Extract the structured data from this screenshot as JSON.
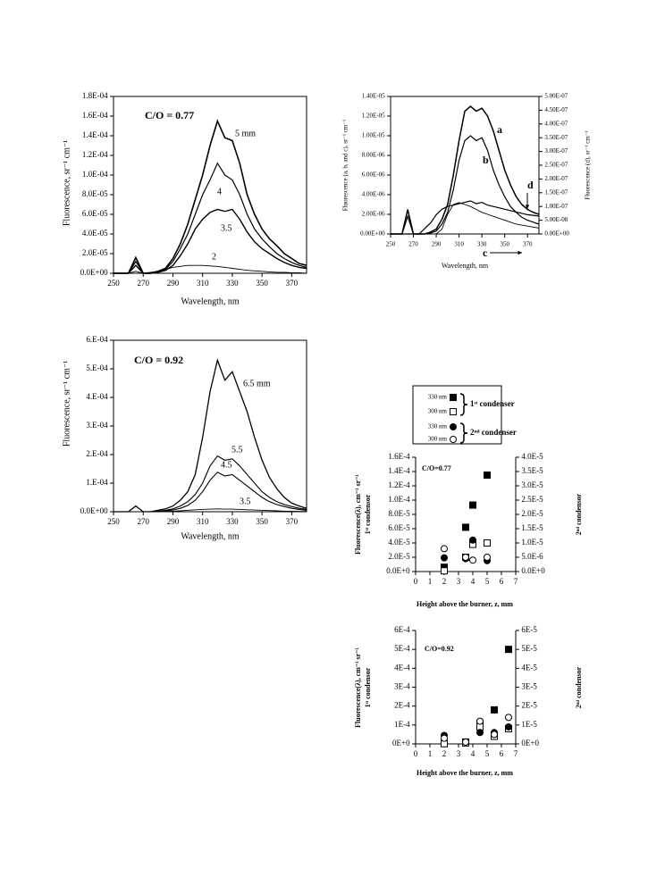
{
  "chart_data": [
    {
      "type": "line",
      "annotation": "C/O = 0.77",
      "xlabel": "Wavelength, nm",
      "ylabel": "Fluorescence, sr⁻¹ cm⁻¹",
      "x": [
        250,
        255,
        260,
        265,
        270,
        275,
        280,
        285,
        290,
        295,
        300,
        305,
        310,
        315,
        320,
        325,
        330,
        335,
        340,
        345,
        350,
        355,
        360,
        365,
        370,
        375,
        380
      ],
      "xlim": [
        250,
        380
      ],
      "xticks": [
        250,
        270,
        290,
        310,
        330,
        350,
        370
      ],
      "ylim": [
        0,
        0.00018
      ],
      "yticks": [
        {
          "value": 0,
          "label": "0.0E+00"
        },
        {
          "value": 2e-05,
          "label": "2.0E-05"
        },
        {
          "value": 4e-05,
          "label": "4.0E-05"
        },
        {
          "value": 6e-05,
          "label": "6.0E-05"
        },
        {
          "value": 8e-05,
          "label": "8.0E-05"
        },
        {
          "value": 0.0001,
          "label": "1.0E-04"
        },
        {
          "value": 0.00012,
          "label": "1.2E-04"
        },
        {
          "value": 0.00014,
          "label": "1.4E-04"
        },
        {
          "value": 0.00016,
          "label": "1.6E-04"
        },
        {
          "value": 0.00018,
          "label": "1.8E-04"
        }
      ],
      "series": [
        {
          "name": "5 mm",
          "color": "#000000",
          "width": 1.6,
          "values": [
            0,
            0,
            0,
            1.6e-05,
            0,
            0,
            2e-06,
            5e-06,
            1.5e-05,
            3e-05,
            5e-05,
            7.5e-05,
            0.0001,
            0.00013,
            0.000155,
            0.000138,
            0.000135,
            0.000112,
            8e-05,
            6e-05,
            4.5e-05,
            3.5e-05,
            2.8e-05,
            2e-05,
            1.5e-05,
            1e-05,
            8e-06
          ]
        },
        {
          "name": "4",
          "color": "#000000",
          "width": 1.2,
          "values": [
            0,
            0,
            0,
            1.2e-05,
            0,
            0,
            2e-06,
            4e-06,
            1.2e-05,
            2.5e-05,
            4e-05,
            6e-05,
            8e-05,
            9.5e-05,
            0.000112,
            0.0001,
            9.5e-05,
            8e-05,
            6e-05,
            4.5e-05,
            3.5e-05,
            2.7e-05,
            2e-05,
            1.5e-05,
            1.1e-05,
            8e-06,
            6e-06
          ]
        },
        {
          "name": "3.5",
          "color": "#000000",
          "width": 1.4,
          "values": [
            0,
            0,
            0,
            8e-06,
            0,
            0,
            1e-06,
            3e-06,
            8e-06,
            1.8e-05,
            3e-05,
            4.5e-05,
            5.5e-05,
            6.2e-05,
            6.5e-05,
            6.3e-05,
            6.5e-05,
            5.5e-05,
            4.2e-05,
            3.2e-05,
            2.5e-05,
            2e-05,
            1.5e-05,
            1.1e-05,
            8e-06,
            6e-06,
            5e-06
          ]
        },
        {
          "name": "2",
          "color": "#000000",
          "width": 0.9,
          "values": [
            0,
            0,
            0,
            2e-06,
            0,
            1e-06,
            2e-06,
            4e-06,
            6e-06,
            7e-06,
            8e-06,
            8e-06,
            8e-06,
            7.5e-06,
            7e-06,
            6e-06,
            5e-06,
            4e-06,
            3e-06,
            2.5e-06,
            2e-06,
            1.5e-06,
            1e-06,
            1e-06,
            5e-07,
            5e-07,
            0
          ]
        }
      ]
    },
    {
      "type": "line",
      "xlabel": "Wavelength, nm",
      "ylabel": "Fluorescence (a, b, and c), sr⁻¹ cm⁻¹",
      "y2label": "Fluorescence (d), sr⁻¹ cm⁻¹",
      "x": [
        250,
        255,
        260,
        265,
        270,
        275,
        280,
        285,
        290,
        295,
        300,
        305,
        310,
        315,
        320,
        325,
        330,
        335,
        340,
        345,
        350,
        355,
        360,
        365,
        370,
        375,
        380
      ],
      "xlim": [
        250,
        380
      ],
      "xticks": [
        250,
        270,
        290,
        310,
        330,
        350,
        370
      ],
      "ylim": [
        0,
        1.4e-05
      ],
      "yticks": [
        {
          "value": 0,
          "label": "0.00E+00"
        },
        {
          "value": 2e-06,
          "label": "2.00E-06"
        },
        {
          "value": 4e-06,
          "label": "4.00E-06"
        },
        {
          "value": 6e-06,
          "label": "6.00E-06"
        },
        {
          "value": 8e-06,
          "label": "8.00E-06"
        },
        {
          "value": 1e-05,
          "label": "1.00E-05"
        },
        {
          "value": 1.2e-05,
          "label": "1.20E-05"
        },
        {
          "value": 1.4e-05,
          "label": "1.40E-05"
        }
      ],
      "y2lim": [
        0,
        5e-07
      ],
      "y2ticks": [
        {
          "value": 0,
          "label": "0.00E+00"
        },
        {
          "value": 5e-08,
          "label": "5.00E-08"
        },
        {
          "value": 1e-07,
          "label": "1.00E-07"
        },
        {
          "value": 1.5e-07,
          "label": "1.50E-07"
        },
        {
          "value": 2e-07,
          "label": "2.00E-07"
        },
        {
          "value": 2.5e-07,
          "label": "2.50E-07"
        },
        {
          "value": 3e-07,
          "label": "3.00E-07"
        },
        {
          "value": 3.5e-07,
          "label": "3.50E-07"
        },
        {
          "value": 4e-07,
          "label": "4.00E-07"
        },
        {
          "value": 4.5e-07,
          "label": "4.50E-07"
        },
        {
          "value": 5e-07,
          "label": "5.00E-07"
        }
      ],
      "series": [
        {
          "name": "a",
          "color": "#000000",
          "width": 1.5,
          "values": [
            0,
            0,
            0,
            2.5e-06,
            0,
            0,
            0,
            2e-07,
            5e-07,
            1.5e-06,
            3e-06,
            6e-06,
            9.5e-06,
            1.25e-05,
            1.3e-05,
            1.25e-05,
            1.28e-05,
            1.2e-05,
            1.05e-05,
            8.5e-06,
            6.5e-06,
            5e-06,
            3.8e-06,
            3e-06,
            2.5e-06,
            2.2e-06,
            2e-06
          ]
        },
        {
          "name": "b",
          "color": "#000000",
          "width": 1.2,
          "values": [
            0,
            0,
            0,
            1.8e-06,
            0,
            0,
            0,
            1e-07,
            3e-07,
            1e-06,
            2.2e-06,
            4.5e-06,
            7.5e-06,
            9.5e-06,
            1e-05,
            9.5e-06,
            9.8e-06,
            8.5e-06,
            6.5e-06,
            5e-06,
            3.8e-06,
            2.8e-06,
            2.2e-06,
            1.7e-06,
            1.4e-06,
            1.2e-06,
            1e-06
          ]
        },
        {
          "name": "c",
          "color": "#000000",
          "width": 0.9,
          "values": [
            0,
            0,
            0,
            0,
            0,
            0,
            0,
            0,
            0,
            5e-07,
            2e-06,
            3e-06,
            3.2e-06,
            3e-06,
            2.8e-06,
            2.5e-06,
            2.2e-06,
            2e-06,
            1.8e-06,
            1.6e-06,
            1.4e-06,
            1.2e-06,
            1e-06,
            9e-07,
            8e-07,
            7e-07,
            6e-07
          ]
        },
        {
          "name": "d",
          "color": "#000000",
          "width": 1.2,
          "axis": "y2",
          "values": [
            0,
            0,
            0,
            0,
            0,
            0,
            2e-08,
            4e-08,
            7e-08,
            9e-08,
            1e-07,
            1.05e-07,
            1.1e-07,
            1.15e-07,
            1.2e-07,
            1.1e-07,
            1.15e-07,
            1.05e-07,
            1e-07,
            9.5e-08,
            9e-08,
            8.5e-08,
            8e-08,
            7.5e-08,
            7e-08,
            6.8e-08,
            6.5e-08
          ]
        }
      ]
    },
    {
      "type": "line",
      "annotation": "C/O = 0.92",
      "xlabel": "Wavelength, nm",
      "ylabel": "Fluorescence, sr⁻¹ cm⁻¹",
      "x": [
        250,
        255,
        260,
        265,
        270,
        275,
        280,
        285,
        290,
        295,
        300,
        305,
        310,
        315,
        320,
        325,
        330,
        335,
        340,
        345,
        350,
        355,
        360,
        365,
        370,
        375,
        380
      ],
      "xlim": [
        250,
        380
      ],
      "xticks": [
        250,
        270,
        290,
        310,
        330,
        350,
        370
      ],
      "ylim": [
        0,
        0.0006
      ],
      "yticks": [
        {
          "value": 0,
          "label": "0.0E+00"
        },
        {
          "value": 0.0001,
          "label": "1.E-04"
        },
        {
          "value": 0.0002,
          "label": "2.E-04"
        },
        {
          "value": 0.0003,
          "label": "3.E-04"
        },
        {
          "value": 0.0004,
          "label": "4.E-04"
        },
        {
          "value": 0.0005,
          "label": "5.E-04"
        },
        {
          "value": 0.0006,
          "label": "6.E-04"
        }
      ],
      "series": [
        {
          "name": "6.5 mm",
          "color": "#000000",
          "width": 1.3,
          "values": [
            0,
            0,
            0,
            2e-05,
            0,
            0,
            5e-06,
            1e-05,
            2e-05,
            4e-05,
            7e-05,
            0.00013,
            0.00026,
            0.00042,
            0.00053,
            0.00046,
            0.00049,
            0.00042,
            0.00035,
            0.00026,
            0.00018,
            0.00012,
            8e-05,
            5e-05,
            3e-05,
            2e-05,
            1.2e-05
          ]
        },
        {
          "name": "5.5",
          "color": "#000000",
          "width": 1.1,
          "values": [
            0,
            0,
            0,
            0,
            0,
            0,
            2e-06,
            5e-06,
            1e-05,
            2e-05,
            3.5e-05,
            6e-05,
            0.0001,
            0.00016,
            0.000195,
            0.00018,
            0.000185,
            0.00016,
            0.00013,
            0.0001,
            7e-05,
            5e-05,
            3.5e-05,
            2.5e-05,
            1.8e-05,
            1.2e-05,
            8e-06
          ]
        },
        {
          "name": "4.5",
          "color": "#000000",
          "width": 1.1,
          "values": [
            0,
            0,
            0,
            0,
            0,
            0,
            1e-06,
            3e-06,
            6e-06,
            1.2e-05,
            2.2e-05,
            4e-05,
            7e-05,
            0.00011,
            0.000138,
            0.000125,
            0.00013,
            0.00011,
            9e-05,
            7e-05,
            5e-05,
            3.5e-05,
            2.5e-05,
            1.8e-05,
            1.2e-05,
            8e-06,
            5e-06
          ]
        },
        {
          "name": "3.5",
          "color": "#000000",
          "width": 0.9,
          "values": [
            0,
            0,
            0,
            0,
            0,
            0,
            0,
            1e-06,
            2e-06,
            3e-06,
            5e-06,
            7e-06,
            8e-06,
            9e-06,
            1e-05,
            9e-06,
            9e-06,
            8e-06,
            7e-06,
            6e-06,
            5e-06,
            4e-06,
            3e-06,
            2e-06,
            2e-06,
            1e-06,
            1e-06
          ]
        }
      ]
    },
    {
      "type": "scatter",
      "annotation": "C/O=0.77",
      "xlabel": "Height above the burner, z, mm",
      "ylabel": "Fluorescence(λ), cm⁻¹ sr⁻¹",
      "ylabel_line2": "1ˢᵗ condensor",
      "y2label": "2ⁿᵈ condensor",
      "legend_groups": [
        "1ˢᵗ condenser",
        "2ⁿᵈ condenser"
      ],
      "xlim": [
        0,
        7
      ],
      "xticks": [
        0,
        1,
        2,
        3,
        4,
        5,
        6,
        7
      ],
      "ylim": [
        0,
        0.00016
      ],
      "yticks": [
        {
          "value": 0,
          "label": "0.0E+0"
        },
        {
          "value": 2e-05,
          "label": "2.0E-5"
        },
        {
          "value": 4e-05,
          "label": "4.0E-5"
        },
        {
          "value": 6e-05,
          "label": "6.0E-5"
        },
        {
          "value": 8e-05,
          "label": "8.0E-5"
        },
        {
          "value": 0.0001,
          "label": "1.0E-4"
        },
        {
          "value": 0.00012,
          "label": "1.2E-4"
        },
        {
          "value": 0.00014,
          "label": "1.4E-4"
        },
        {
          "value": 0.00016,
          "label": "1.6E-4"
        }
      ],
      "y2lim": [
        0,
        4e-05
      ],
      "y2ticks": [
        {
          "value": 0,
          "label": "0.0E+0"
        },
        {
          "value": 5e-06,
          "label": "5.0E-6"
        },
        {
          "value": 1e-05,
          "label": "1.0E-5"
        },
        {
          "value": 1.5e-05,
          "label": "1.5E-5"
        },
        {
          "value": 2e-05,
          "label": "2.0E-5"
        },
        {
          "value": 2.5e-05,
          "label": "2.5E-5"
        },
        {
          "value": 3e-05,
          "label": "3.0E-5"
        },
        {
          "value": 3.5e-05,
          "label": "3.5E-5"
        },
        {
          "value": 4e-05,
          "label": "4.0E-5"
        }
      ],
      "series": [
        {
          "name": "330 nm",
          "marker": "square",
          "filled": true,
          "x": [
            2,
            3.5,
            4,
            5
          ],
          "values": [
            6e-06,
            6.2e-05,
            9.3e-05,
            0.000135
          ]
        },
        {
          "name": "300 nm",
          "marker": "square",
          "filled": false,
          "x": [
            2,
            3.5,
            4,
            5
          ],
          "values": [
            1e-06,
            2e-05,
            3.8e-05,
            4e-05
          ]
        },
        {
          "name": "330 nm",
          "marker": "circle",
          "filled": true,
          "axis": "y2",
          "x": [
            2,
            3.5,
            4,
            5
          ],
          "values": [
            4.8e-06,
            4.5e-06,
            1.1e-05,
            3.8e-06
          ]
        },
        {
          "name": "300 nm",
          "marker": "circle",
          "filled": false,
          "axis": "y2",
          "x": [
            2,
            3.5,
            4,
            5
          ],
          "values": [
            8e-06,
            5e-06,
            4e-06,
            5e-06
          ]
        }
      ]
    },
    {
      "type": "scatter",
      "annotation": "C/O=0.92",
      "xlabel": "Height above the burner, z, mm",
      "ylabel": "Fluorescence(λ), cm⁻¹ sr⁻¹",
      "ylabel_line2": "1ˢᵗ condensor",
      "y2label": "2ⁿᵈ condensor",
      "xlim": [
        0,
        7
      ],
      "xticks": [
        0,
        1,
        2,
        3,
        4,
        5,
        6,
        7
      ],
      "ylim": [
        0,
        0.0006
      ],
      "yticks": [
        {
          "value": 0,
          "label": "0E+0"
        },
        {
          "value": 0.0001,
          "label": "1E-4"
        },
        {
          "value": 0.0002,
          "label": "2E-4"
        },
        {
          "value": 0.0003,
          "label": "3E-4"
        },
        {
          "value": 0.0004,
          "label": "4E-4"
        },
        {
          "value": 0.0005,
          "label": "5E-4"
        },
        {
          "value": 0.0006,
          "label": "6E-4"
        }
      ],
      "y2lim": [
        0,
        6e-05
      ],
      "y2ticks": [
        {
          "value": 0,
          "label": "0E+0"
        },
        {
          "value": 1e-05,
          "label": "1E-5"
        },
        {
          "value": 2e-05,
          "label": "2E-5"
        },
        {
          "value": 3e-05,
          "label": "3E-5"
        },
        {
          "value": 4e-05,
          "label": "4E-5"
        },
        {
          "value": 5e-05,
          "label": "5E-5"
        },
        {
          "value": 6e-05,
          "label": "6E-5"
        }
      ],
      "series": [
        {
          "marker": "square",
          "filled": true,
          "x": [
            2,
            3.5,
            4.5,
            5.5,
            6.5
          ],
          "values": [
            3e-06,
            1e-05,
            0.00011,
            0.00018,
            0.0005
          ]
        },
        {
          "marker": "square",
          "filled": false,
          "x": [
            2,
            3.5,
            4.5,
            5.5,
            6.5
          ],
          "values": [
            1e-06,
            5e-06,
            9e-05,
            4e-05,
            8e-05
          ]
        },
        {
          "marker": "circle",
          "filled": true,
          "axis": "y2",
          "x": [
            2,
            3.5,
            4.5,
            5.5,
            6.5
          ],
          "values": [
            4.5e-06,
            1e-06,
            6e-06,
            6e-06,
            9e-06
          ]
        },
        {
          "marker": "circle",
          "filled": false,
          "axis": "y2",
          "x": [
            2,
            3.5,
            4.5,
            5.5,
            6.5
          ],
          "values": [
            3e-06,
            1e-06,
            1.2e-05,
            5e-06,
            1.4e-05
          ]
        }
      ]
    }
  ]
}
